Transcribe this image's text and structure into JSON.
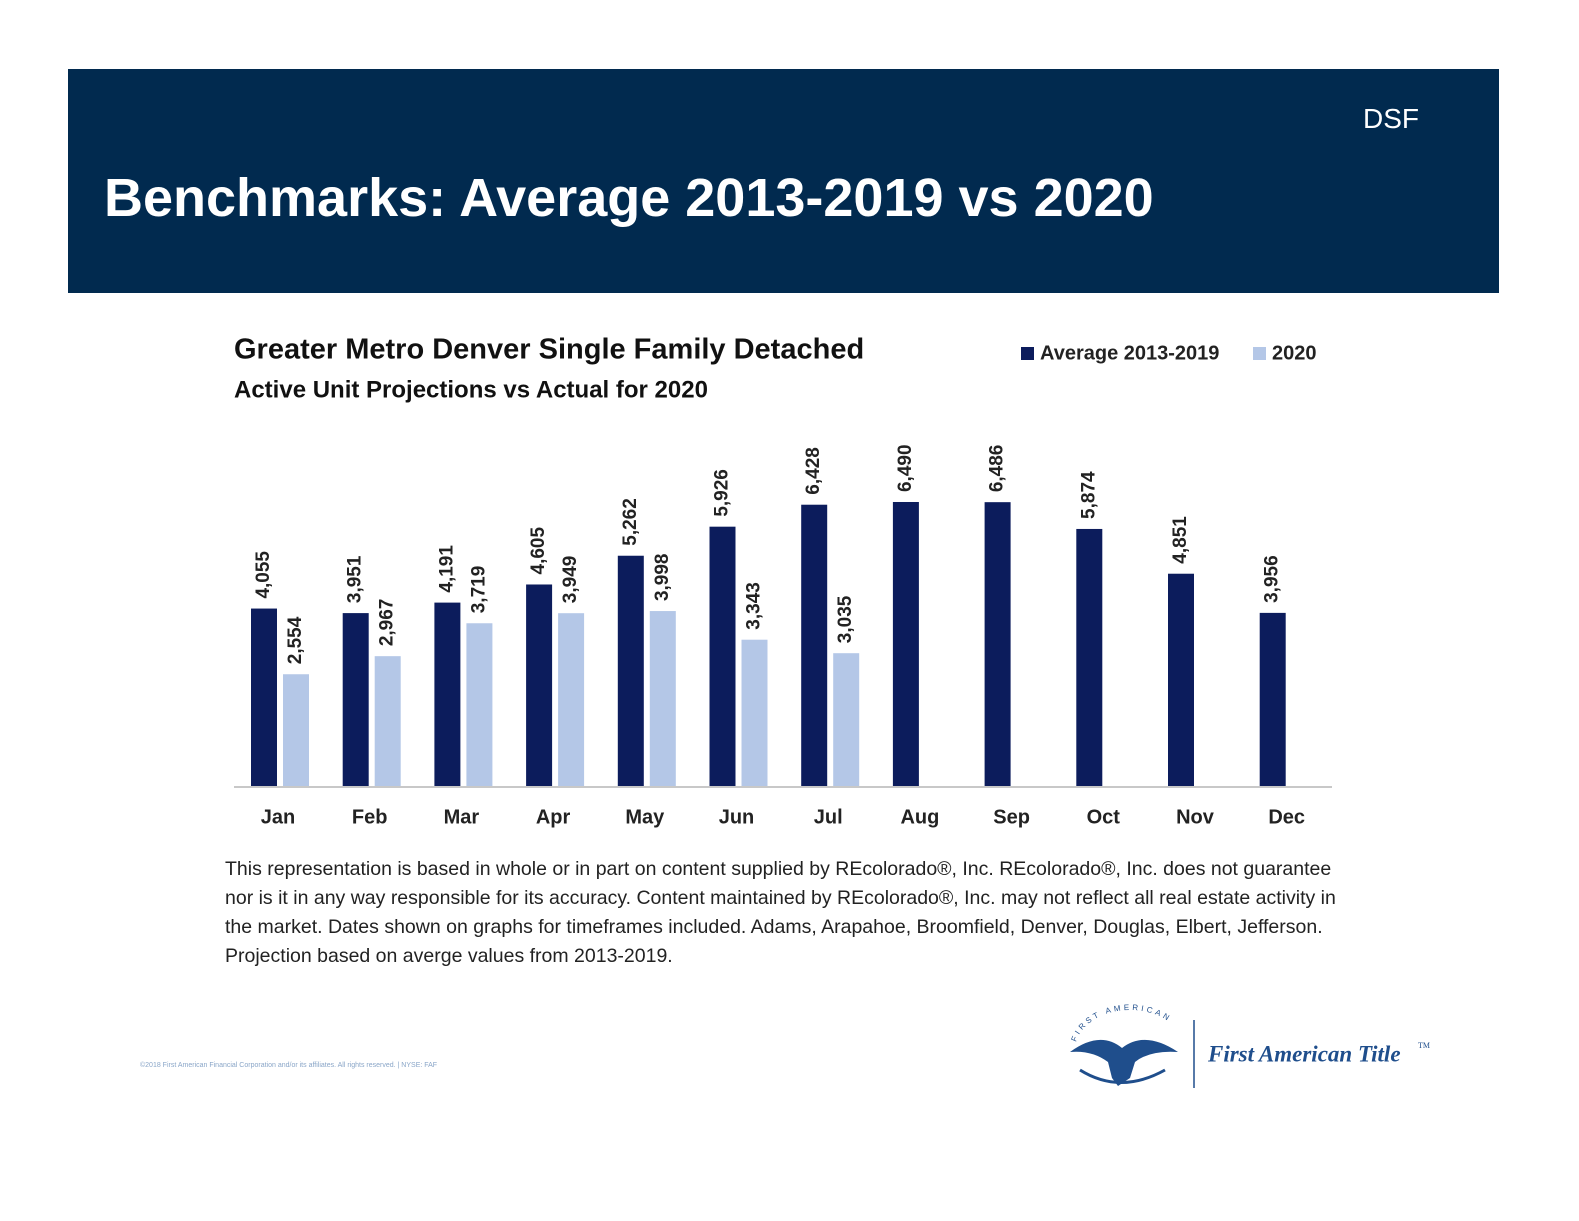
{
  "header": {
    "tag": "DSF",
    "title": "Benchmarks: Average 2013-2019 vs 2020"
  },
  "chart_data": {
    "type": "bar",
    "title": "Greater Metro Denver Single Family Detached",
    "subtitle": "Active Unit Projections vs Actual for 2020",
    "categories": [
      "Jan",
      "Feb",
      "Mar",
      "Apr",
      "May",
      "Jun",
      "Jul",
      "Aug",
      "Sep",
      "Oct",
      "Nov",
      "Dec"
    ],
    "series": [
      {
        "name": "Average 2013-2019",
        "color": "#0c1c5c",
        "values": [
          4055,
          3951,
          4191,
          4605,
          5262,
          5926,
          6428,
          6490,
          6486,
          5874,
          4851,
          3956
        ],
        "value_labels": [
          "4,055",
          "3,951",
          "4,191",
          "4,605",
          "5,262",
          "5,926",
          "6,428",
          "6,490",
          "6,486",
          "5,874",
          "4,851",
          "3,956"
        ]
      },
      {
        "name": "2020",
        "color": "#b4c7e7",
        "values": [
          2554,
          2967,
          3719,
          3949,
          3998,
          3343,
          3035,
          null,
          null,
          null,
          null,
          null
        ],
        "value_labels": [
          "2,554",
          "2,967",
          "3,719",
          "3,949",
          "3,998",
          "3,343",
          "3,035",
          null,
          null,
          null,
          null,
          null
        ]
      }
    ],
    "legend": "top-right"
  },
  "footnote": "This representation is based in whole or in part on content supplied by REcolorado®, Inc. REcolorado®, Inc. does not guarantee nor is it in any way responsible for its accuracy. Content maintained by REcolorado®, Inc. may not reflect all real estate activity in the market. Dates shown on graphs for timeframes included.  Adams, Arapahoe, Broomfield, Denver, Douglas, Elbert, Jefferson. Projection based on averge values from 2013-2019.",
  "copyright": "©2018 First American Financial Corporation and/or its affiliates. All rights reserved. | NYSE: FAF",
  "logo": {
    "arc": "FIRST AMERICAN",
    "name": "First American Title",
    "tm": "TM"
  }
}
